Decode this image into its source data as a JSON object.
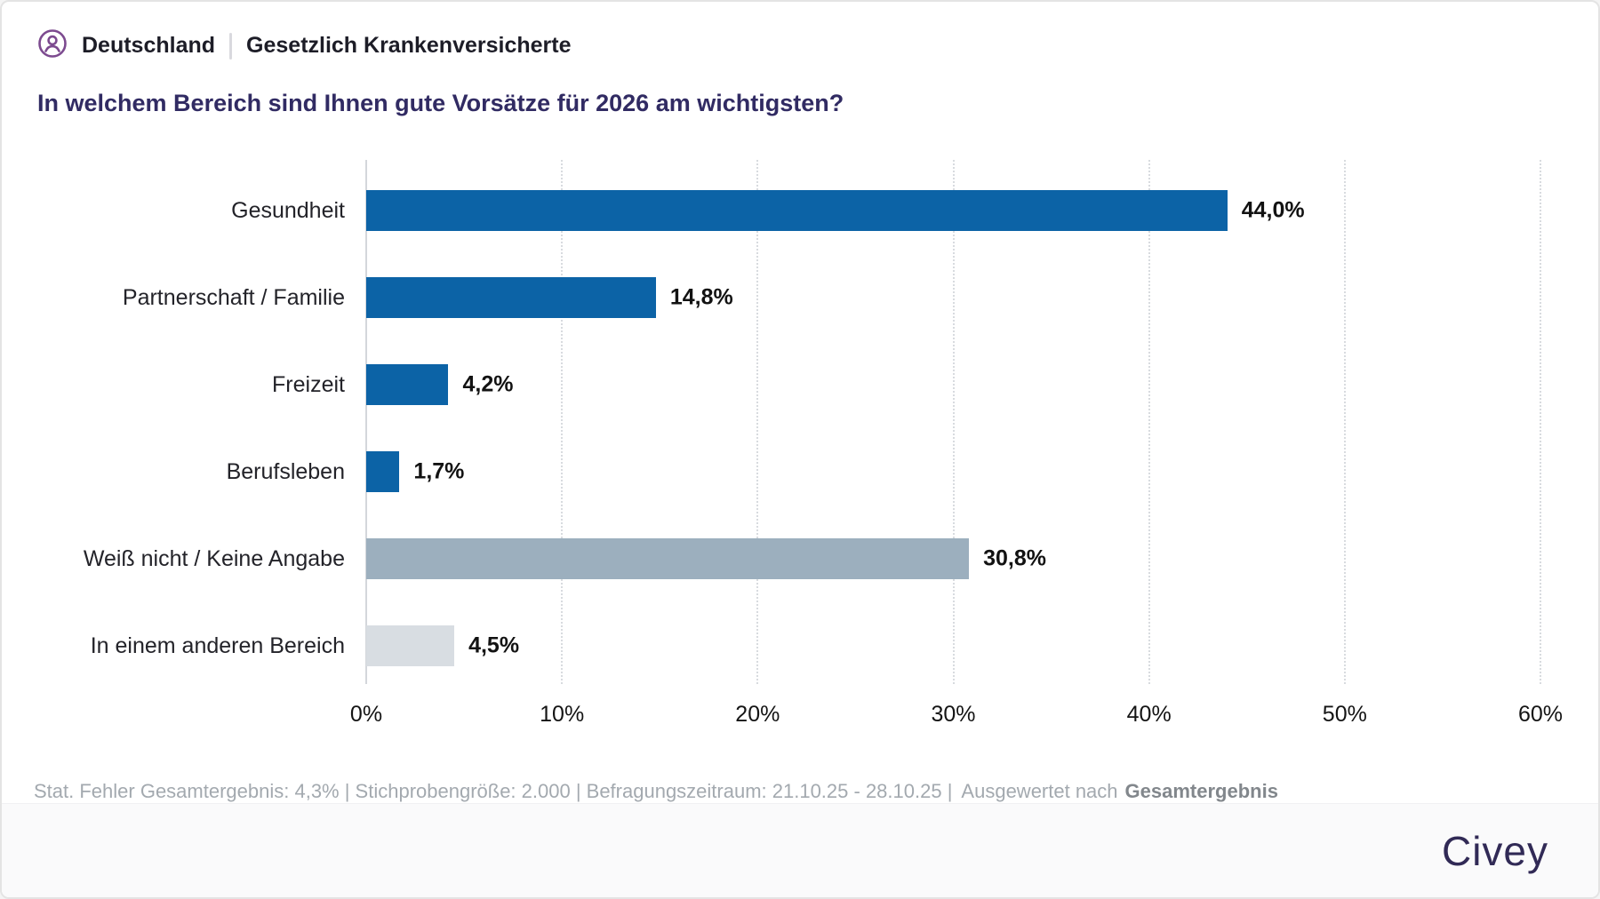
{
  "header": {
    "region": "Deutschland",
    "audience": "Gesetzlich Krankenversicherte",
    "title": "In welchem Bereich sind Ihnen gute Vorsätze für 2026 am wichtigsten?"
  },
  "chart_data": {
    "type": "bar",
    "orientation": "horizontal",
    "title": "In welchem Bereich sind Ihnen gute Vorsätze für 2026 am wichtigsten?",
    "categories": [
      "Gesundheit",
      "Partnerschaft / Familie",
      "Freizeit",
      "Berufsleben",
      "Weiß nicht / Keine Angabe",
      "In einem anderen Bereich"
    ],
    "values": [
      44.0,
      14.8,
      4.2,
      1.7,
      30.8,
      4.5
    ],
    "value_labels": [
      "44,0%",
      "14,8%",
      "4,2%",
      "1,7%",
      "30,8%",
      "4,5%"
    ],
    "bar_colors": [
      "#0c63a6",
      "#0c63a6",
      "#0c63a6",
      "#0c63a6",
      "#9cafbe",
      "#d8dde2"
    ],
    "xlim": [
      0,
      60
    ],
    "x_ticks": [
      0,
      10,
      20,
      30,
      40,
      50,
      60
    ],
    "x_tick_labels": [
      "0%",
      "10%",
      "20%",
      "30%",
      "40%",
      "50%",
      "60%"
    ],
    "grid": "vertical-dotted",
    "legend": "none"
  },
  "footer": {
    "stats": "Stat. Fehler Gesamtergebnis: 4,3% | Stichprobengröße: 2.000 | Befragungszeitraum: 21.10.25 - 28.10.25 |",
    "grouping_label": "Ausgewertet nach",
    "grouping_value": "Gesamtergebnis"
  },
  "brand": {
    "logo_text": "Civey"
  },
  "colors": {
    "bar_blue": "#0c63a6",
    "bar_gray": "#9cafbe",
    "bar_light_gray": "#d8dde2",
    "title_color": "#312b63",
    "icon_purple": "#7c4a8f",
    "logo_color": "#312a56"
  }
}
